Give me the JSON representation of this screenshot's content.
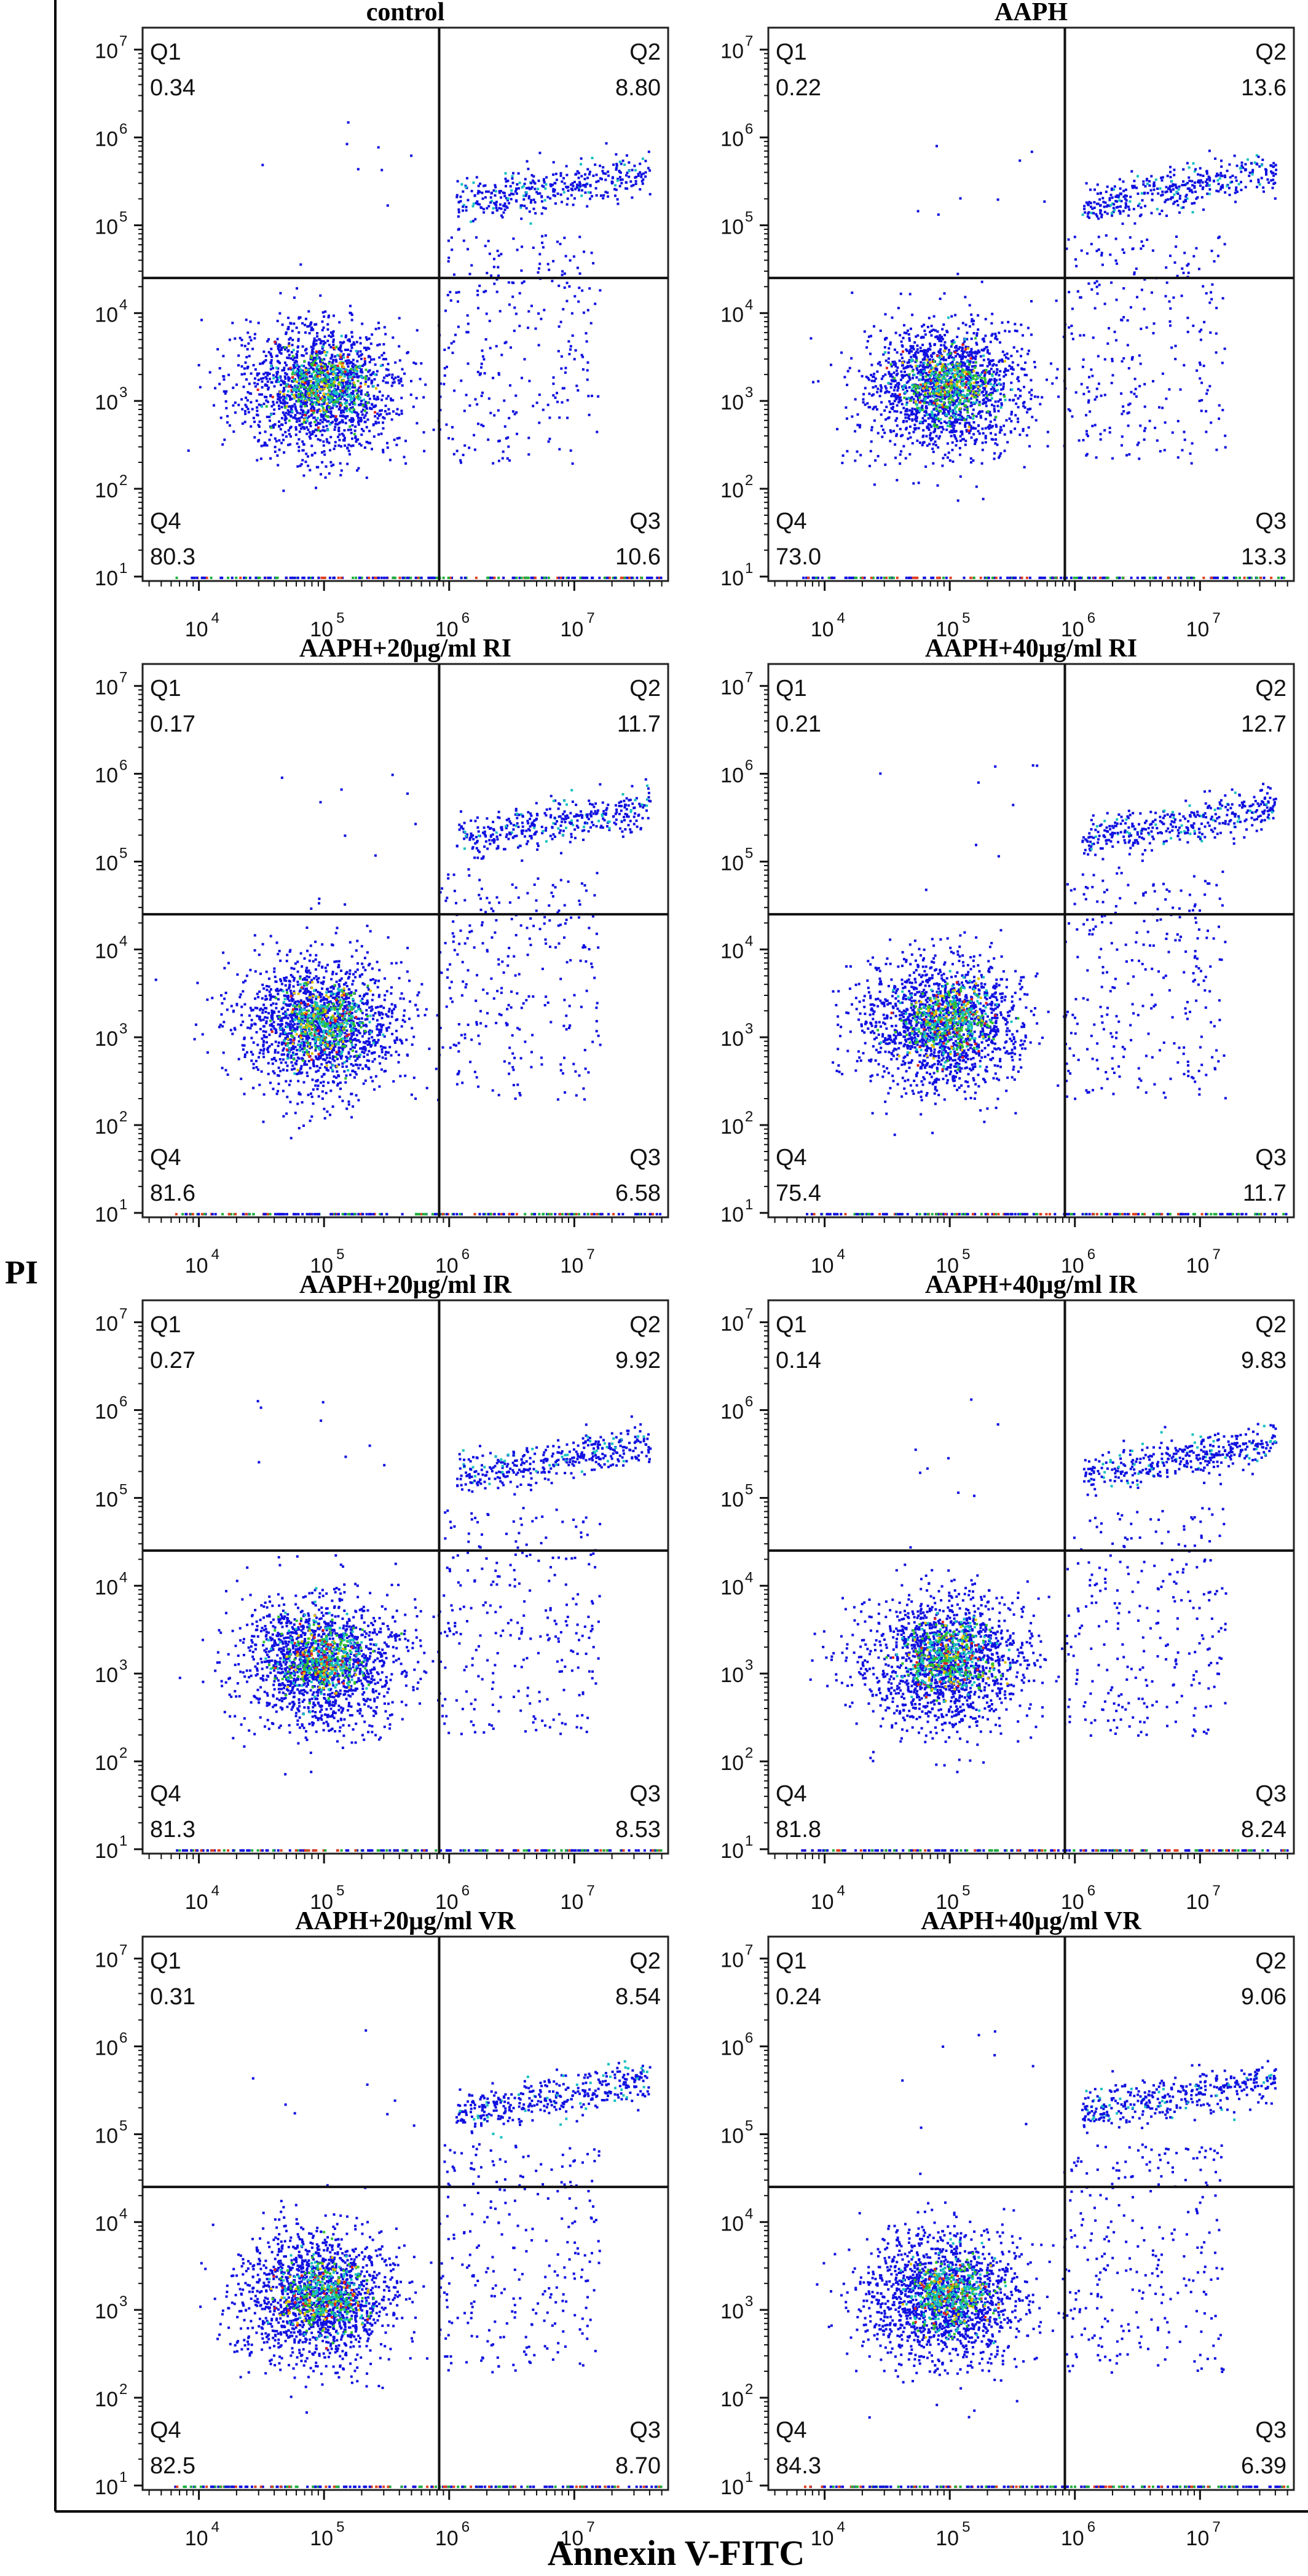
{
  "figure": {
    "ylabel": "PI",
    "xlabel": "Annexin V-FITC"
  },
  "chart_data": [
    {
      "type": "scatter",
      "title": "control",
      "xlabel": "Annexin V-FITC",
      "ylabel": "PI",
      "x_ticks": [
        "10^4",
        "10^5",
        "10^6",
        "10^7"
      ],
      "y_ticks": [
        "10^1",
        "10^2",
        "10^3",
        "10^4",
        "10^5",
        "10^6",
        "10^7"
      ],
      "quadrants": {
        "Q1": "0.34",
        "Q2": "8.80",
        "Q3": "10.6",
        "Q4": "80.3"
      }
    },
    {
      "type": "scatter",
      "title": "AAPH",
      "xlabel": "Annexin V-FITC",
      "ylabel": "PI",
      "x_ticks": [
        "10^4",
        "10^5",
        "10^6",
        "10^7"
      ],
      "y_ticks": [
        "10^1",
        "10^2",
        "10^3",
        "10^4",
        "10^5",
        "10^6",
        "10^7"
      ],
      "quadrants": {
        "Q1": "0.22",
        "Q2": "13.6",
        "Q3": "13.3",
        "Q4": "73.0"
      }
    },
    {
      "type": "scatter",
      "title": "AAPH+20μg/ml RI",
      "xlabel": "Annexin V-FITC",
      "ylabel": "PI",
      "x_ticks": [
        "10^4",
        "10^5",
        "10^6",
        "10^7"
      ],
      "y_ticks": [
        "10^1",
        "10^2",
        "10^3",
        "10^4",
        "10^5",
        "10^6",
        "10^7"
      ],
      "quadrants": {
        "Q1": "0.17",
        "Q2": "11.7",
        "Q3": "6.58",
        "Q4": "81.6"
      }
    },
    {
      "type": "scatter",
      "title": "AAPH+40μg/ml RI",
      "xlabel": "Annexin V-FITC",
      "ylabel": "PI",
      "x_ticks": [
        "10^4",
        "10^5",
        "10^6",
        "10^7"
      ],
      "y_ticks": [
        "10^1",
        "10^2",
        "10^3",
        "10^4",
        "10^5",
        "10^6",
        "10^7"
      ],
      "quadrants": {
        "Q1": "0.21",
        "Q2": "12.7",
        "Q3": "11.7",
        "Q4": "75.4"
      }
    },
    {
      "type": "scatter",
      "title": "AAPH+20μg/ml IR",
      "xlabel": "Annexin V-FITC",
      "ylabel": "PI",
      "x_ticks": [
        "10^4",
        "10^5",
        "10^6",
        "10^7"
      ],
      "y_ticks": [
        "10^1",
        "10^2",
        "10^3",
        "10^4",
        "10^5",
        "10^6",
        "10^7"
      ],
      "quadrants": {
        "Q1": "0.27",
        "Q2": "9.92",
        "Q3": "8.53",
        "Q4": "81.3"
      }
    },
    {
      "type": "scatter",
      "title": "AAPH+40μg/ml IR",
      "xlabel": "Annexin V-FITC",
      "ylabel": "PI",
      "x_ticks": [
        "10^4",
        "10^5",
        "10^6",
        "10^7"
      ],
      "y_ticks": [
        "10^1",
        "10^2",
        "10^3",
        "10^4",
        "10^5",
        "10^6",
        "10^7"
      ],
      "quadrants": {
        "Q1": "0.14",
        "Q2": "9.83",
        "Q3": "8.24",
        "Q4": "81.8"
      }
    },
    {
      "type": "scatter",
      "title": "AAPH+20μg/ml VR",
      "xlabel": "Annexin V-FITC",
      "ylabel": "PI",
      "x_ticks": [
        "10^4",
        "10^5",
        "10^6",
        "10^7"
      ],
      "y_ticks": [
        "10^1",
        "10^2",
        "10^3",
        "10^4",
        "10^5",
        "10^6",
        "10^7"
      ],
      "quadrants": {
        "Q1": "0.31",
        "Q2": "8.54",
        "Q3": "8.70",
        "Q4": "82.5"
      }
    },
    {
      "type": "scatter",
      "title": "AAPH+40μg/ml VR",
      "xlabel": "Annexin V-FITC",
      "ylabel": "PI",
      "x_ticks": [
        "10^4",
        "10^5",
        "10^6",
        "10^7"
      ],
      "y_ticks": [
        "10^1",
        "10^2",
        "10^3",
        "10^4",
        "10^5",
        "10^6",
        "10^7"
      ],
      "quadrants": {
        "Q1": "0.24",
        "Q2": "9.06",
        "Q3": "6.39",
        "Q4": "84.3"
      }
    }
  ]
}
